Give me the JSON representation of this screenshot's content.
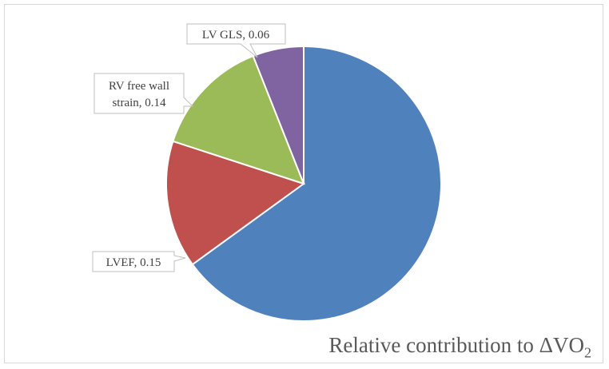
{
  "chart_data": {
    "type": "pie",
    "start_angle_deg": 0,
    "direction": "clockwise",
    "slices": [
      {
        "label": "",
        "value": 0.65,
        "color": "#4f81bd"
      },
      {
        "label": "LVEF, 0.15",
        "value": 0.15,
        "color": "#c0504d"
      },
      {
        "label": "RV free wall strain, 0.14",
        "value": 0.14,
        "color": "#9bbb59"
      },
      {
        "label": "LV GLS, 0.06",
        "value": 0.06,
        "color": "#8064a2"
      }
    ],
    "labels": {
      "lvgls": "LV GLS, 0.06",
      "rv_line1": "RV free wall",
      "rv_line2": "strain, 0.14",
      "lvef": "LVEF, 0.15"
    },
    "title": {
      "prefix": "Relative contribution to ",
      "delta": "Δ",
      "main": "VO",
      "subscript": "2"
    }
  }
}
